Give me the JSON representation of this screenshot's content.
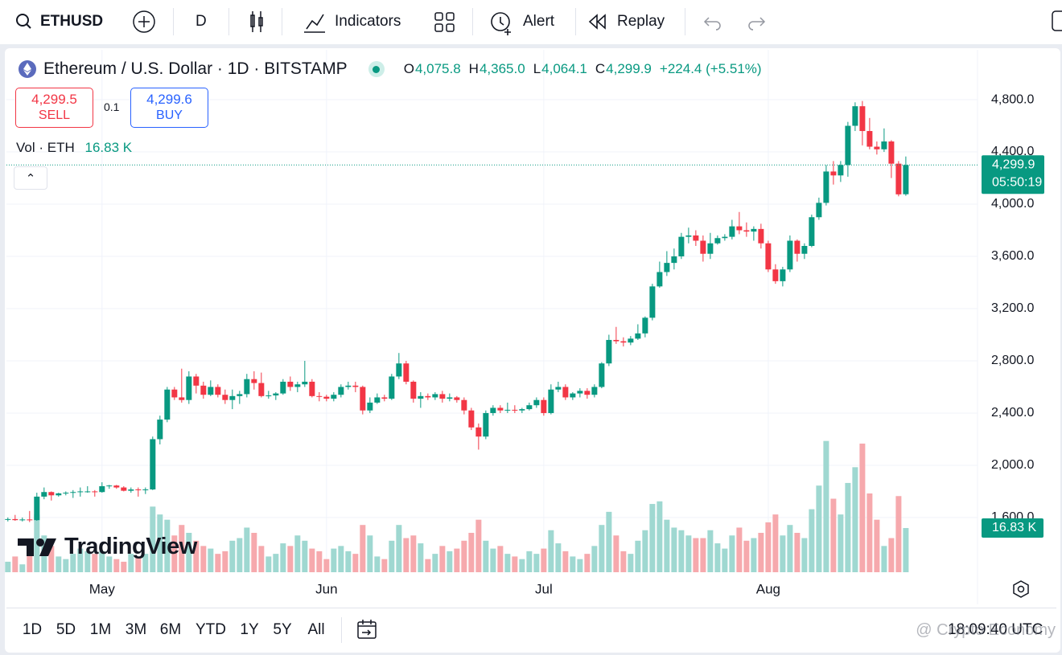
{
  "toolbar": {
    "symbol": "ETHUSD",
    "interval": "D",
    "indicators": "Indicators",
    "alert": "Alert",
    "replay": "Replay"
  },
  "legend": {
    "title": "Ethereum / U.S. Dollar · 1D · BITSTAMP",
    "ohlc": [
      {
        "key": "O",
        "value": "4,075.8"
      },
      {
        "key": "H",
        "value": "4,365.0"
      },
      {
        "key": "L",
        "value": "4,064.1"
      },
      {
        "key": "C",
        "value": "4,299.9"
      }
    ],
    "change": "+224.4 (+5.51%)",
    "sell_price": "4,299.5",
    "sell": "SELL",
    "spread": "0.1",
    "buy_price": "4,299.6",
    "buy": "BUY",
    "volume_name": "Vol · ETH",
    "volume_value": "16.83 K"
  },
  "chart_data": {
    "type": "candlestick",
    "candles": [
      [
        1585,
        1600,
        1570,
        1588
      ],
      [
        1588,
        1620,
        1575,
        1580
      ],
      [
        1580,
        1600,
        1570,
        1585
      ],
      [
        1585,
        1650,
        1565,
        1580
      ],
      [
        1580,
        1790,
        1575,
        1760
      ],
      [
        1760,
        1830,
        1740,
        1795
      ],
      [
        1795,
        1800,
        1730,
        1770
      ],
      [
        1770,
        1790,
        1760,
        1785
      ],
      [
        1785,
        1800,
        1770,
        1790
      ],
      [
        1790,
        1810,
        1750,
        1795
      ],
      [
        1795,
        1830,
        1760,
        1800
      ],
      [
        1800,
        1840,
        1790,
        1800
      ],
      [
        1800,
        1810,
        1760,
        1795
      ],
      [
        1795,
        1870,
        1790,
        1840
      ],
      [
        1840,
        1850,
        1820,
        1845
      ],
      [
        1845,
        1850,
        1820,
        1830
      ],
      [
        1830,
        1840,
        1800,
        1805
      ],
      [
        1805,
        1830,
        1790,
        1815
      ],
      [
        1815,
        1830,
        1760,
        1810
      ],
      [
        1810,
        1830,
        1780,
        1815
      ],
      [
        1815,
        2220,
        1810,
        2200
      ],
      [
        2200,
        2380,
        2160,
        2350
      ],
      [
        2350,
        2600,
        2330,
        2580
      ],
      [
        2580,
        2600,
        2500,
        2520
      ],
      [
        2520,
        2740,
        2480,
        2500
      ],
      [
        2500,
        2720,
        2470,
        2680
      ],
      [
        2680,
        2700,
        2550,
        2610
      ],
      [
        2610,
        2640,
        2510,
        2540
      ],
      [
        2540,
        2650,
        2530,
        2600
      ],
      [
        2600,
        2620,
        2520,
        2540
      ],
      [
        2540,
        2580,
        2470,
        2500
      ],
      [
        2500,
        2580,
        2430,
        2530
      ],
      [
        2530,
        2570,
        2470,
        2545
      ],
      [
        2545,
        2700,
        2520,
        2660
      ],
      [
        2660,
        2720,
        2580,
        2630
      ],
      [
        2630,
        2710,
        2520,
        2530
      ],
      [
        2530,
        2570,
        2510,
        2535
      ],
      [
        2535,
        2560,
        2500,
        2550
      ],
      [
        2550,
        2660,
        2540,
        2640
      ],
      [
        2640,
        2680,
        2570,
        2600
      ],
      [
        2600,
        2640,
        2560,
        2620
      ],
      [
        2620,
        2800,
        2600,
        2640
      ],
      [
        2640,
        2660,
        2520,
        2530
      ],
      [
        2530,
        2560,
        2490,
        2525
      ],
      [
        2525,
        2540,
        2490,
        2510
      ],
      [
        2510,
        2560,
        2490,
        2540
      ],
      [
        2540,
        2620,
        2520,
        2600
      ],
      [
        2600,
        2640,
        2580,
        2610
      ],
      [
        2610,
        2640,
        2560,
        2600
      ],
      [
        2600,
        2610,
        2390,
        2420
      ],
      [
        2420,
        2520,
        2400,
        2480
      ],
      [
        2480,
        2550,
        2470,
        2520
      ],
      [
        2520,
        2540,
        2490,
        2510
      ],
      [
        2510,
        2700,
        2500,
        2680
      ],
      [
        2680,
        2860,
        2660,
        2780
      ],
      [
        2780,
        2800,
        2620,
        2640
      ],
      [
        2640,
        2650,
        2480,
        2510
      ],
      [
        2510,
        2560,
        2440,
        2530
      ],
      [
        2530,
        2550,
        2500,
        2520
      ],
      [
        2520,
        2560,
        2500,
        2545
      ],
      [
        2545,
        2570,
        2480,
        2510
      ],
      [
        2510,
        2550,
        2490,
        2520
      ],
      [
        2520,
        2530,
        2480,
        2500
      ],
      [
        2500,
        2520,
        2390,
        2420
      ],
      [
        2420,
        2440,
        2270,
        2290
      ],
      [
        2290,
        2320,
        2120,
        2220
      ],
      [
        2220,
        2420,
        2200,
        2400
      ],
      [
        2400,
        2460,
        2380,
        2440
      ],
      [
        2440,
        2460,
        2400,
        2420
      ],
      [
        2420,
        2480,
        2400,
        2425
      ],
      [
        2425,
        2460,
        2400,
        2420
      ],
      [
        2420,
        2440,
        2400,
        2430
      ],
      [
        2430,
        2480,
        2420,
        2460
      ],
      [
        2460,
        2520,
        2440,
        2500
      ],
      [
        2500,
        2520,
        2380,
        2400
      ],
      [
        2400,
        2620,
        2390,
        2580
      ],
      [
        2580,
        2640,
        2560,
        2600
      ],
      [
        2600,
        2620,
        2500,
        2520
      ],
      [
        2520,
        2560,
        2500,
        2550
      ],
      [
        2550,
        2590,
        2520,
        2570
      ],
      [
        2570,
        2590,
        2510,
        2540
      ],
      [
        2540,
        2620,
        2520,
        2600
      ],
      [
        2600,
        2790,
        2590,
        2780
      ],
      [
        2780,
        3000,
        2760,
        2960
      ],
      [
        2960,
        3060,
        2930,
        2950
      ],
      [
        2950,
        2980,
        2910,
        2940
      ],
      [
        2940,
        2990,
        2920,
        2970
      ],
      [
        2970,
        3080,
        2960,
        3010
      ],
      [
        3010,
        3140,
        2980,
        3130
      ],
      [
        3130,
        3390,
        3110,
        3370
      ],
      [
        3370,
        3560,
        3360,
        3480
      ],
      [
        3480,
        3640,
        3450,
        3550
      ],
      [
        3550,
        3660,
        3500,
        3600
      ],
      [
        3600,
        3780,
        3580,
        3750
      ],
      [
        3750,
        3820,
        3700,
        3760
      ],
      [
        3760,
        3800,
        3680,
        3720
      ],
      [
        3720,
        3760,
        3560,
        3620
      ],
      [
        3620,
        3780,
        3580,
        3700
      ],
      [
        3700,
        3760,
        3690,
        3740
      ],
      [
        3740,
        3770,
        3720,
        3750
      ],
      [
        3750,
        3880,
        3730,
        3830
      ],
      [
        3830,
        3940,
        3770,
        3800
      ],
      [
        3800,
        3860,
        3750,
        3790
      ],
      [
        3790,
        3830,
        3720,
        3810
      ],
      [
        3810,
        3850,
        3660,
        3700
      ],
      [
        3700,
        3720,
        3480,
        3500
      ],
      [
        3500,
        3540,
        3390,
        3410
      ],
      [
        3410,
        3520,
        3370,
        3500
      ],
      [
        3500,
        3760,
        3480,
        3720
      ],
      [
        3720,
        3730,
        3560,
        3620
      ],
      [
        3620,
        3700,
        3580,
        3680
      ],
      [
        3680,
        3920,
        3670,
        3900
      ],
      [
        3900,
        4050,
        3880,
        4010
      ],
      [
        4010,
        4300,
        3990,
        4250
      ],
      [
        4250,
        4330,
        4150,
        4220
      ],
      [
        4220,
        4330,
        4170,
        4300
      ],
      [
        4300,
        4630,
        4210,
        4600
      ],
      [
        4600,
        4780,
        4560,
        4750
      ],
      [
        4750,
        4790,
        4450,
        4560
      ],
      [
        4560,
        4660,
        4420,
        4440
      ],
      [
        4440,
        4480,
        4380,
        4420
      ],
      [
        4420,
        4580,
        4400,
        4480
      ],
      [
        4480,
        4490,
        4200,
        4310
      ],
      [
        4310,
        4330,
        4060,
        4075
      ],
      [
        4075.8,
        4365,
        4064.1,
        4299.9
      ]
    ],
    "volumes": [
      4,
      6,
      3,
      8,
      22,
      14,
      10,
      6,
      5,
      7,
      9,
      8,
      7,
      8,
      6,
      5,
      4,
      7,
      6,
      7,
      25,
      22,
      20,
      14,
      18,
      15,
      12,
      10,
      9,
      7,
      8,
      12,
      13,
      17,
      15,
      10,
      6,
      7,
      11,
      10,
      14,
      12,
      9,
      8,
      5,
      9,
      10,
      8,
      7,
      18,
      14,
      6,
      5,
      12,
      18,
      13,
      14,
      11,
      5,
      7,
      10,
      8,
      9,
      12,
      15,
      20,
      12,
      9,
      10,
      7,
      6,
      5,
      8,
      7,
      9,
      16,
      11,
      8,
      6,
      5,
      7,
      10,
      18,
      23,
      14,
      8,
      7,
      12,
      16,
      26,
      27,
      20,
      17,
      16,
      14,
      13,
      13,
      16,
      11,
      9,
      14,
      17,
      12,
      13,
      15,
      19,
      22,
      14,
      18,
      15,
      13,
      24,
      33,
      50,
      28,
      22,
      34,
      40,
      49,
      30,
      20,
      10,
      13,
      29,
      16.83
    ],
    "colors": {
      "up": "#089981",
      "down": "#f23645",
      "volume_up": "#9fd8d1",
      "volume_down": "#f6a9ad"
    },
    "xlim": [
      -0.2,
      133.9
    ],
    "xticks": [
      {
        "value": 13,
        "label": "May"
      },
      {
        "value": 44,
        "label": "Jun"
      },
      {
        "value": 74,
        "label": "Jul"
      },
      {
        "value": 105,
        "label": "Aug"
      }
    ],
    "ylim": [
      1181,
      4948
    ],
    "yticks": [
      {
        "value": 1600,
        "label": "1,600.0"
      },
      {
        "value": 2000,
        "label": "2,000.0"
      },
      {
        "value": 2400,
        "label": "2,400.0"
      },
      {
        "value": 2800,
        "label": "2,800.0"
      },
      {
        "value": 3200,
        "label": "3,200.0"
      },
      {
        "value": 3600,
        "label": "3,600.0"
      },
      {
        "value": 4000,
        "label": "4,000.0"
      },
      {
        "value": 4400,
        "label": "4,400.0"
      },
      {
        "value": 4800,
        "label": "4,800.0"
      }
    ],
    "vlim": [
      0,
      60
    ],
    "last_price": {
      "value": 4299.9,
      "label": "4,299.9"
    },
    "countdown": "05:50:19",
    "last_volume_label": "16.83 K",
    "grid": true
  },
  "timeframes": [
    "1D",
    "5D",
    "1M",
    "3M",
    "6M",
    "YTD",
    "1Y",
    "5Y",
    "All"
  ],
  "clock": "18:09:40 UTC",
  "watermark": "@ Crypto Economy",
  "logo": "TradingView"
}
